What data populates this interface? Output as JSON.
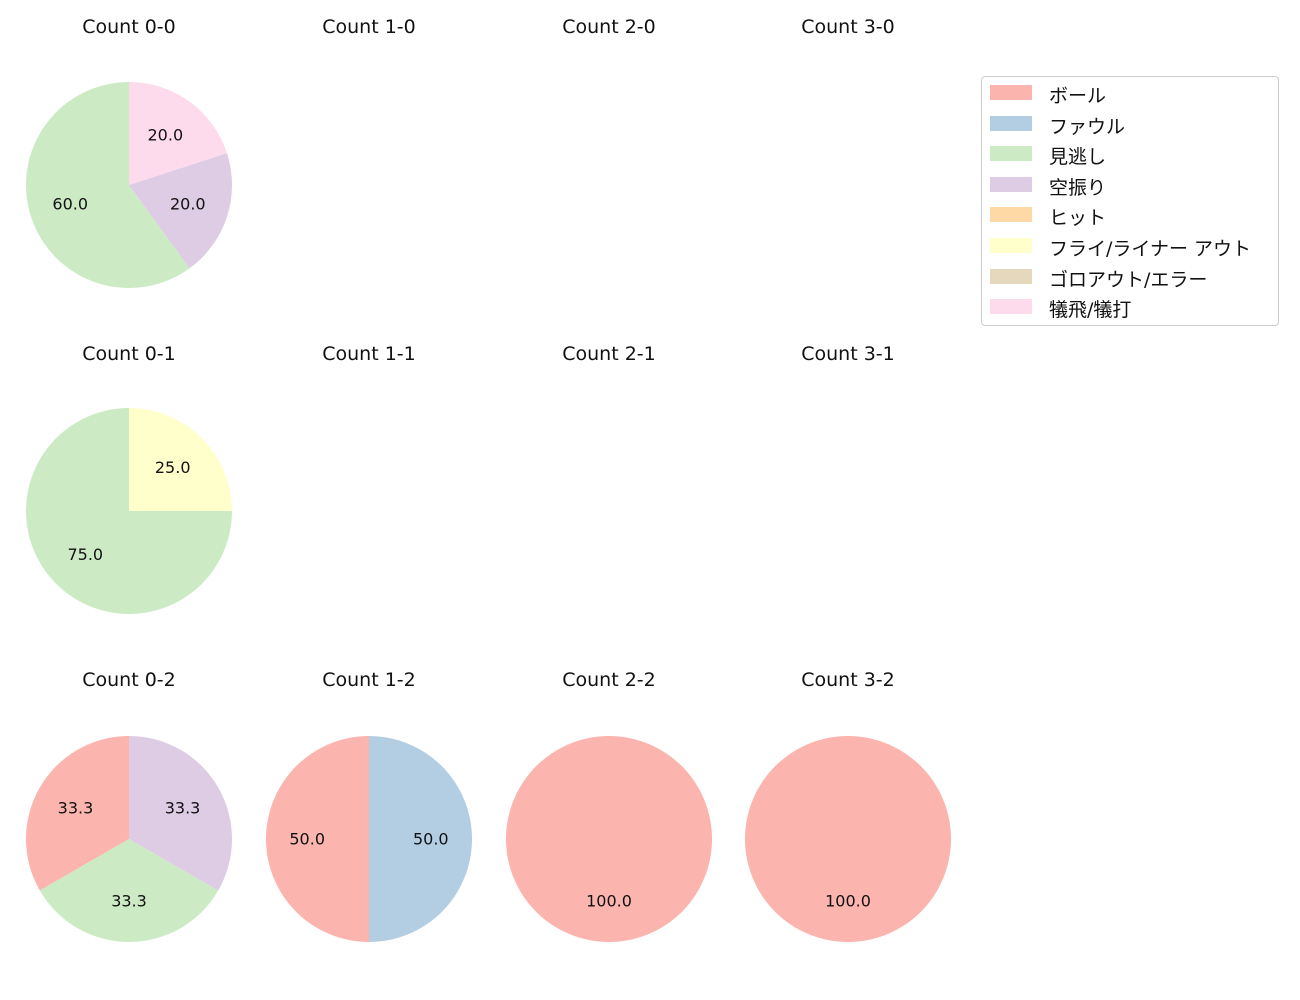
{
  "legend": {
    "items": [
      {
        "label": "ボール",
        "color": "#fbb4ae"
      },
      {
        "label": "ファウル",
        "color": "#b3cde3"
      },
      {
        "label": "見逃し",
        "color": "#ccebc5"
      },
      {
        "label": "空振り",
        "color": "#decbe4"
      },
      {
        "label": "ヒット",
        "color": "#fed9a6"
      },
      {
        "label": "フライ/ライナー アウト",
        "color": "#ffffcc"
      },
      {
        "label": "ゴロアウト/エラー",
        "color": "#e5d8bd"
      },
      {
        "label": "犠飛/犠打",
        "color": "#fddaec"
      }
    ]
  },
  "chart_data": [
    {
      "type": "pie",
      "title": "Count 0-0",
      "slices": [
        {
          "category": "見逃し",
          "value": 60.0
        },
        {
          "category": "空振り",
          "value": 20.0
        },
        {
          "category": "犠飛/犠打",
          "value": 20.0
        }
      ]
    },
    {
      "type": "pie",
      "title": "Count 1-0",
      "slices": []
    },
    {
      "type": "pie",
      "title": "Count 2-0",
      "slices": []
    },
    {
      "type": "pie",
      "title": "Count 3-0",
      "slices": []
    },
    {
      "type": "pie",
      "title": "Count 0-1",
      "slices": [
        {
          "category": "見逃し",
          "value": 75.0
        },
        {
          "category": "フライ/ライナー アウト",
          "value": 25.0
        }
      ]
    },
    {
      "type": "pie",
      "title": "Count 1-1",
      "slices": []
    },
    {
      "type": "pie",
      "title": "Count 2-1",
      "slices": []
    },
    {
      "type": "pie",
      "title": "Count 3-1",
      "slices": []
    },
    {
      "type": "pie",
      "title": "Count 0-2",
      "slices": [
        {
          "category": "ボール",
          "value": 33.3
        },
        {
          "category": "見逃し",
          "value": 33.3
        },
        {
          "category": "空振り",
          "value": 33.3
        }
      ]
    },
    {
      "type": "pie",
      "title": "Count 1-2",
      "slices": [
        {
          "category": "ボール",
          "value": 50.0
        },
        {
          "category": "ファウル",
          "value": 50.0
        }
      ]
    },
    {
      "type": "pie",
      "title": "Count 2-2",
      "slices": [
        {
          "category": "ボール",
          "value": 100.0
        }
      ]
    },
    {
      "type": "pie",
      "title": "Count 3-2",
      "slices": [
        {
          "category": "ボール",
          "value": 100.0
        }
      ]
    }
  ]
}
